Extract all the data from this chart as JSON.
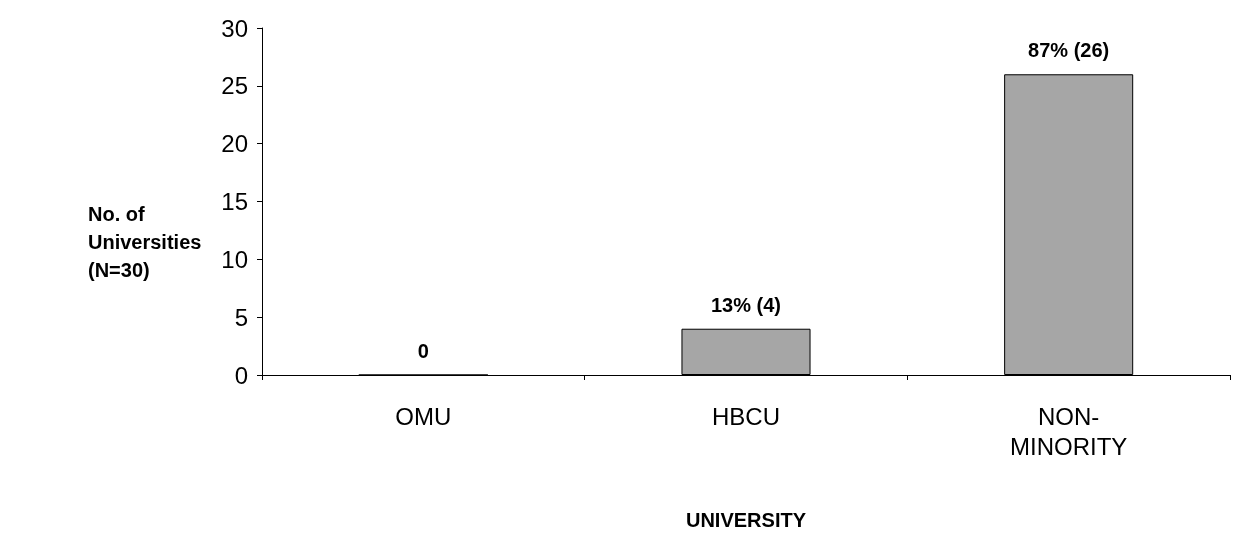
{
  "chart_data": {
    "type": "bar",
    "xlabel": "UNIVERSITY",
    "ylabel": "No. of Universities (N=30)",
    "categories": [
      "OMU",
      "HBCU",
      "NON-MINORITY"
    ],
    "values": [
      0,
      4,
      26
    ],
    "value_labels": [
      "0",
      "13% (4)",
      "87% (26)"
    ],
    "color": "#a6a6a6",
    "ylim": [
      0,
      30
    ],
    "yticks": [
      0,
      5,
      10,
      15,
      20,
      25,
      30
    ],
    "grid": false
  }
}
